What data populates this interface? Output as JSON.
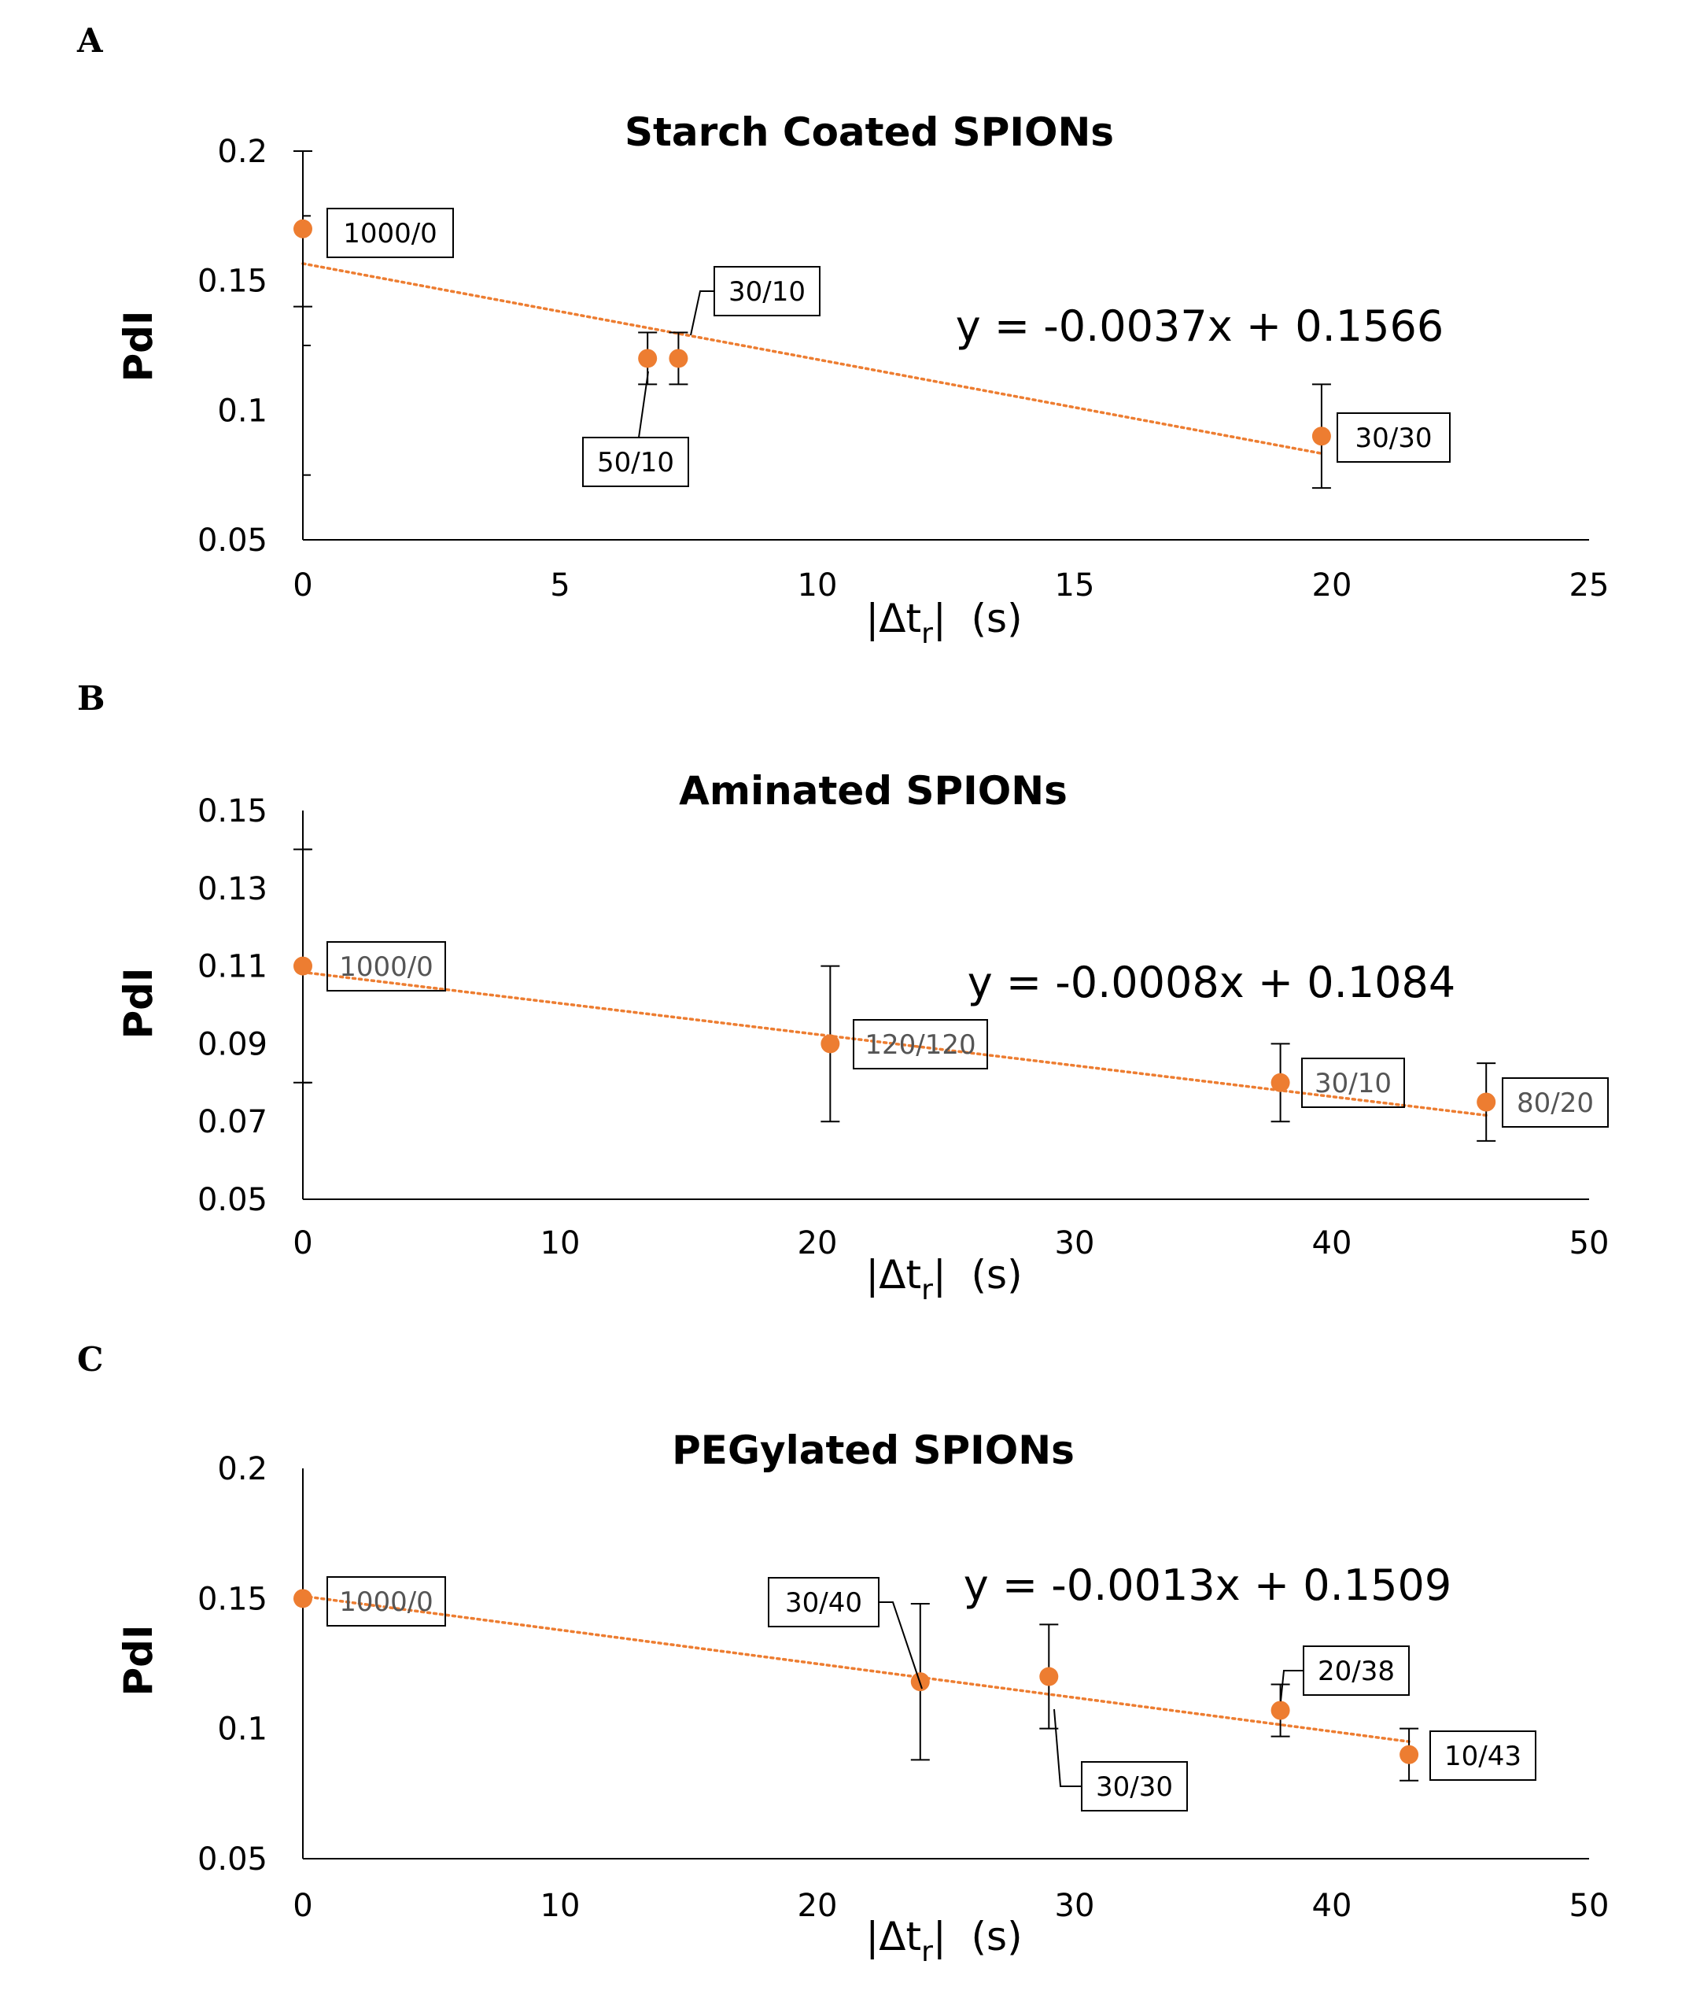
{
  "chart_data": [
    {
      "panel": "A",
      "type": "scatter",
      "title": "Starch Coated SPIONs",
      "xlabel": "|Δtr|  (s)",
      "ylabel": "PdI",
      "xlim": [
        0,
        25
      ],
      "ylim": [
        0.05,
        0.2
      ],
      "xticks": [
        "0",
        "5",
        "10",
        "15",
        "20",
        "25"
      ],
      "yticks": [
        "0.05",
        "0.1",
        "0.15",
        "0.2"
      ],
      "point_color": "#ED7D31",
      "trendline": {
        "slope": -0.0037,
        "intercept": 0.1566,
        "x_start": 0,
        "x_end": 19.8,
        "equation": "y = -0.0037x + 0.1566"
      },
      "points": [
        {
          "x": 0,
          "y": 0.17,
          "err": 0.03,
          "label": "1000/0"
        },
        {
          "x": 6.7,
          "y": 0.12,
          "err": 0.01,
          "label": "50/10"
        },
        {
          "x": 7.3,
          "y": 0.12,
          "err": 0.01,
          "label": "30/10"
        },
        {
          "x": 19.8,
          "y": 0.09,
          "err": 0.02,
          "label": "30/30"
        }
      ]
    },
    {
      "panel": "B",
      "type": "scatter",
      "title": "Aminated SPIONs",
      "xlabel": "|Δtr|  (s)",
      "ylabel": "PdI",
      "xlim": [
        0,
        50
      ],
      "ylim": [
        0.05,
        0.15
      ],
      "xticks": [
        "0",
        "10",
        "20",
        "30",
        "40",
        "50"
      ],
      "yticks": [
        "0.05",
        "0.07",
        "0.09",
        "0.11",
        "0.13",
        "0.15"
      ],
      "point_color": "#ED7D31",
      "trendline": {
        "slope": -0.0008,
        "intercept": 0.1084,
        "x_start": 0,
        "x_end": 46,
        "equation": "y = -0.0008x + 0.1084"
      },
      "points": [
        {
          "x": 0,
          "y": 0.11,
          "err": 0.03,
          "label": "1000/0"
        },
        {
          "x": 20.5,
          "y": 0.09,
          "err": 0.02,
          "label": "120/120"
        },
        {
          "x": 38,
          "y": 0.08,
          "err": 0.01,
          "label": "30/10"
        },
        {
          "x": 46,
          "y": 0.075,
          "err": 0.01,
          "label": "80/20"
        }
      ]
    },
    {
      "panel": "C",
      "type": "scatter",
      "title": "PEGylated SPIONs",
      "xlabel": "|Δtr|  (s)",
      "ylabel": "PdI",
      "xlim": [
        0,
        50
      ],
      "ylim": [
        0.05,
        0.2
      ],
      "xticks": [
        "0",
        "10",
        "20",
        "30",
        "40",
        "50"
      ],
      "yticks": [
        "0.05",
        "0.1",
        "0.15",
        "0.2"
      ],
      "point_color": "#ED7D31",
      "trendline": {
        "slope": -0.0013,
        "intercept": 0.1509,
        "x_start": 0,
        "x_end": 43,
        "equation": "y = -0.0013x + 0.1509"
      },
      "points": [
        {
          "x": 0,
          "y": 0.15,
          "err": 0,
          "label": "1000/0"
        },
        {
          "x": 24,
          "y": 0.118,
          "err": 0.03,
          "label": "30/40"
        },
        {
          "x": 29,
          "y": 0.12,
          "err": 0.02,
          "label": "30/30"
        },
        {
          "x": 38,
          "y": 0.107,
          "err": 0.01,
          "label": "20/38"
        },
        {
          "x": 43,
          "y": 0.09,
          "err": 0.01,
          "label": "10/43"
        }
      ]
    }
  ]
}
